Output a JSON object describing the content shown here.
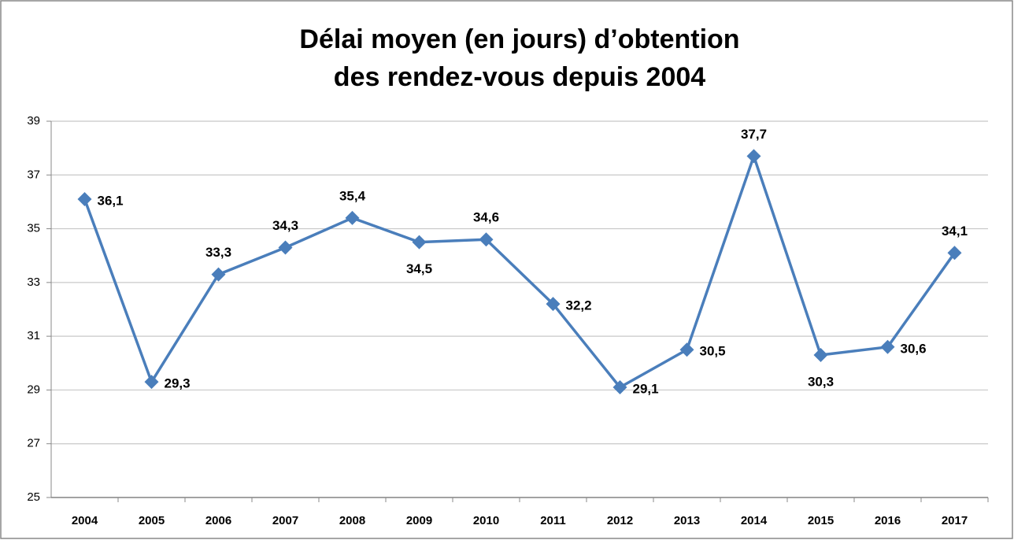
{
  "chart_data": {
    "type": "line",
    "title": [
      "Délai moyen (en jours) d’obtention",
      "des rendez-vous depuis 2004"
    ],
    "categories": [
      "2004",
      "2005",
      "2006",
      "2007",
      "2008",
      "2009",
      "2010",
      "2011",
      "2012",
      "2013",
      "2014",
      "2015",
      "2016",
      "2017"
    ],
    "series": [
      {
        "name": "Délai moyen",
        "color": "#4a7ebb",
        "values": [
          36.1,
          29.3,
          33.3,
          34.3,
          35.4,
          34.5,
          34.6,
          32.2,
          29.1,
          30.5,
          37.7,
          30.3,
          30.6,
          34.1
        ],
        "value_labels": [
          "36,1",
          "29,3",
          "33,3",
          "34,3",
          "35,4",
          "34,5",
          "34,6",
          "32,2",
          "29,1",
          "30,5",
          "37,7",
          "30,3",
          "30,6",
          "34,1"
        ]
      }
    ],
    "ylim": [
      25,
      39
    ],
    "yticks": [
      25,
      27,
      29,
      31,
      33,
      35,
      37,
      39
    ],
    "grid": true
  }
}
